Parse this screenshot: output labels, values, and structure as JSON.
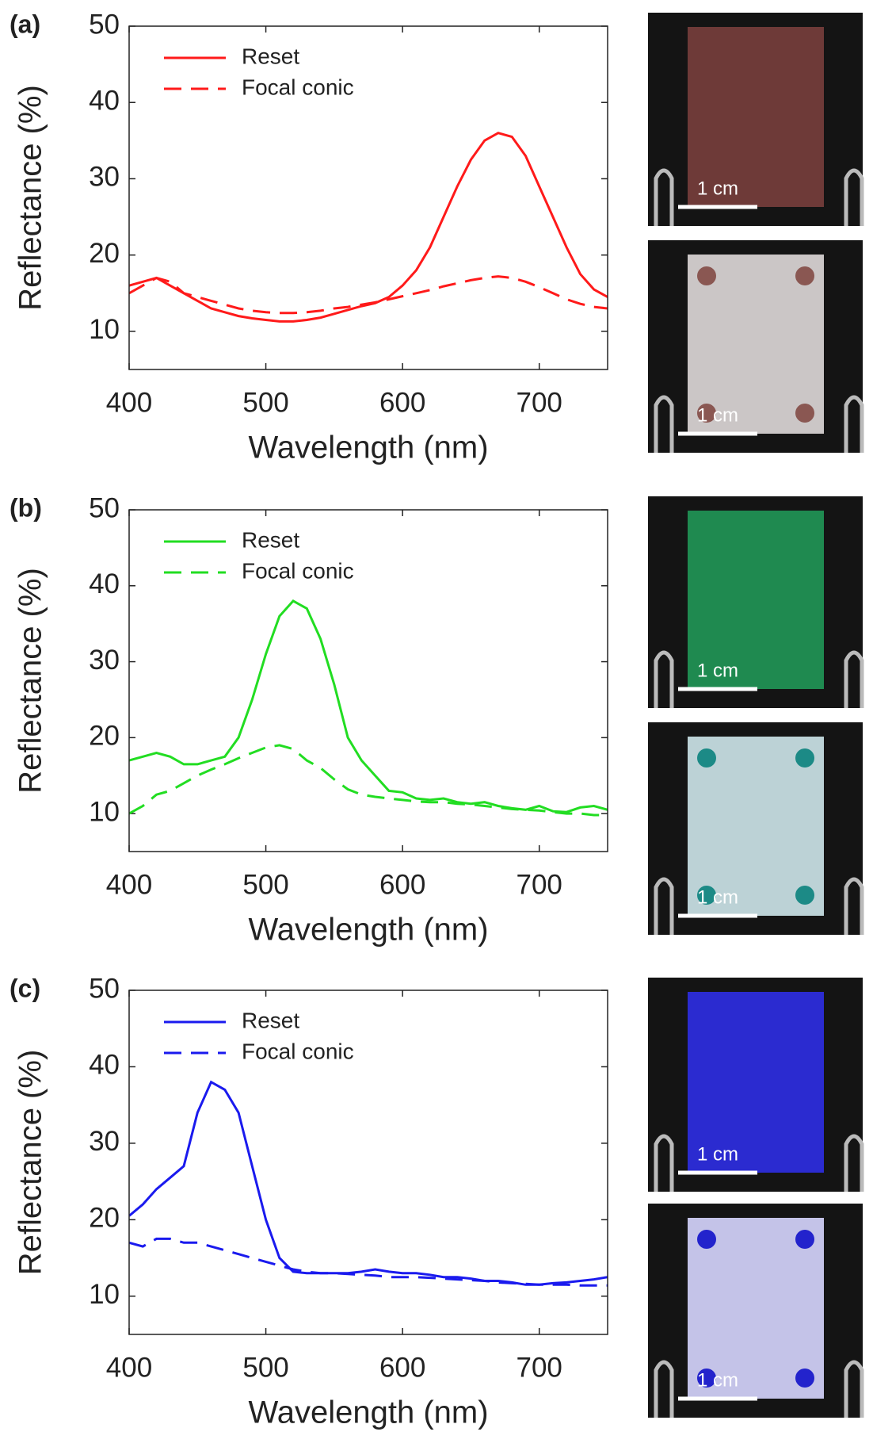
{
  "chart_data": [
    {
      "type": "line",
      "panel_label": "(a)",
      "xlabel": "Wavelength (nm)",
      "ylabel": "Reflectance (%)",
      "x": [
        400,
        410,
        420,
        430,
        440,
        450,
        460,
        470,
        480,
        490,
        500,
        510,
        520,
        530,
        540,
        550,
        560,
        570,
        580,
        590,
        600,
        610,
        620,
        630,
        640,
        650,
        660,
        670,
        680,
        690,
        700,
        710,
        720,
        730,
        740,
        750
      ],
      "series": [
        {
          "name": "Reset",
          "color": "#ff1a1a",
          "style": "solid",
          "values": [
            16,
            16.5,
            17,
            16,
            15,
            14,
            13,
            12.5,
            12,
            11.7,
            11.5,
            11.3,
            11.3,
            11.5,
            11.8,
            12.3,
            12.8,
            13.3,
            13.7,
            14.5,
            16,
            18,
            21,
            25,
            29,
            32.5,
            35,
            36,
            35.5,
            33,
            29,
            25,
            21,
            17.5,
            15.5,
            14.5
          ]
        },
        {
          "name": "Focal conic",
          "color": "#ff1a1a",
          "style": "dashed",
          "values": [
            15,
            16,
            17,
            16.5,
            15,
            14.5,
            14,
            13.5,
            13,
            12.7,
            12.5,
            12.4,
            12.4,
            12.5,
            12.7,
            13,
            13.2,
            13.5,
            13.8,
            14.2,
            14.6,
            15,
            15.4,
            15.9,
            16.3,
            16.7,
            17,
            17.2,
            17,
            16.5,
            15.8,
            15,
            14.2,
            13.6,
            13.2,
            13
          ]
        }
      ],
      "xlim": [
        400,
        750
      ],
      "ylim": [
        5,
        50
      ],
      "xticks": [
        400,
        500,
        600,
        700
      ],
      "yticks": [
        10,
        20,
        30,
        40,
        50
      ],
      "legend": "upper left",
      "photo_labels": [
        "1 cm",
        "1 cm"
      ]
    },
    {
      "type": "line",
      "panel_label": "(b)",
      "xlabel": "Wavelength (nm)",
      "ylabel": "Reflectance (%)",
      "x": [
        400,
        410,
        420,
        430,
        440,
        450,
        460,
        470,
        480,
        490,
        500,
        510,
        520,
        530,
        540,
        550,
        560,
        570,
        580,
        590,
        600,
        610,
        620,
        630,
        640,
        650,
        660,
        670,
        680,
        690,
        700,
        710,
        720,
        730,
        740,
        750
      ],
      "series": [
        {
          "name": "Reset",
          "color": "#22dd22",
          "style": "solid",
          "values": [
            17,
            17.5,
            18,
            17.5,
            16.5,
            16.5,
            17,
            17.5,
            20,
            25,
            31,
            36,
            38,
            37,
            33,
            27,
            20,
            17,
            15,
            13,
            12.8,
            12,
            11.8,
            12,
            11.5,
            11.3,
            11.5,
            11,
            10.7,
            10.5,
            11,
            10.3,
            10.2,
            10.8,
            11,
            10.5
          ]
        },
        {
          "name": "Focal conic",
          "color": "#22dd22",
          "style": "dashed",
          "values": [
            10,
            11,
            12.5,
            13,
            14,
            15,
            15.8,
            16.5,
            17.3,
            18,
            18.7,
            19,
            18.5,
            17,
            16,
            14.5,
            13.2,
            12.5,
            12.2,
            12,
            11.8,
            11.6,
            11.5,
            11.5,
            11.3,
            11.2,
            11,
            10.8,
            10.6,
            10.5,
            10.4,
            10.2,
            10,
            10,
            9.8,
            9.8
          ]
        }
      ],
      "xlim": [
        400,
        750
      ],
      "ylim": [
        5,
        50
      ],
      "xticks": [
        400,
        500,
        600,
        700
      ],
      "yticks": [
        10,
        20,
        30,
        40,
        50
      ],
      "legend": "upper left",
      "photo_labels": [
        "1 cm",
        "1 cm"
      ]
    },
    {
      "type": "line",
      "panel_label": "(c)",
      "xlabel": "Wavelength (nm)",
      "ylabel": "Reflectance (%)",
      "x": [
        400,
        410,
        420,
        430,
        440,
        450,
        460,
        470,
        480,
        490,
        500,
        510,
        520,
        530,
        540,
        550,
        560,
        570,
        580,
        590,
        600,
        610,
        620,
        630,
        640,
        650,
        660,
        670,
        680,
        690,
        700,
        710,
        720,
        730,
        740,
        750
      ],
      "series": [
        {
          "name": "Reset",
          "color": "#1a1aee",
          "style": "solid",
          "values": [
            20.5,
            22,
            24,
            25.5,
            27,
            34,
            38,
            37,
            34,
            27,
            20,
            15,
            13.2,
            13,
            13,
            13,
            13,
            13.2,
            13.5,
            13.2,
            13,
            13,
            12.8,
            12.5,
            12.5,
            12.3,
            12,
            12,
            11.8,
            11.5,
            11.5,
            11.7,
            11.8,
            12,
            12.2,
            12.5
          ]
        },
        {
          "name": "Focal conic",
          "color": "#1a1aee",
          "style": "dashed",
          "values": [
            17,
            16.5,
            17.5,
            17.5,
            17,
            17,
            16.5,
            16,
            15.5,
            15,
            14.5,
            14,
            13.5,
            13.2,
            13,
            13,
            12.9,
            12.8,
            12.7,
            12.5,
            12.5,
            12.5,
            12.4,
            12.3,
            12.2,
            12.1,
            12,
            11.8,
            11.7,
            11.6,
            11.5,
            11.5,
            11.5,
            11.4,
            11.4,
            11.4
          ]
        }
      ],
      "xlim": [
        400,
        750
      ],
      "ylim": [
        5,
        50
      ],
      "xticks": [
        400,
        500,
        600,
        700
      ],
      "yticks": [
        10,
        20,
        30,
        40,
        50
      ],
      "legend": "upper left",
      "photo_labels": [
        "1 cm",
        "1 cm"
      ]
    }
  ]
}
